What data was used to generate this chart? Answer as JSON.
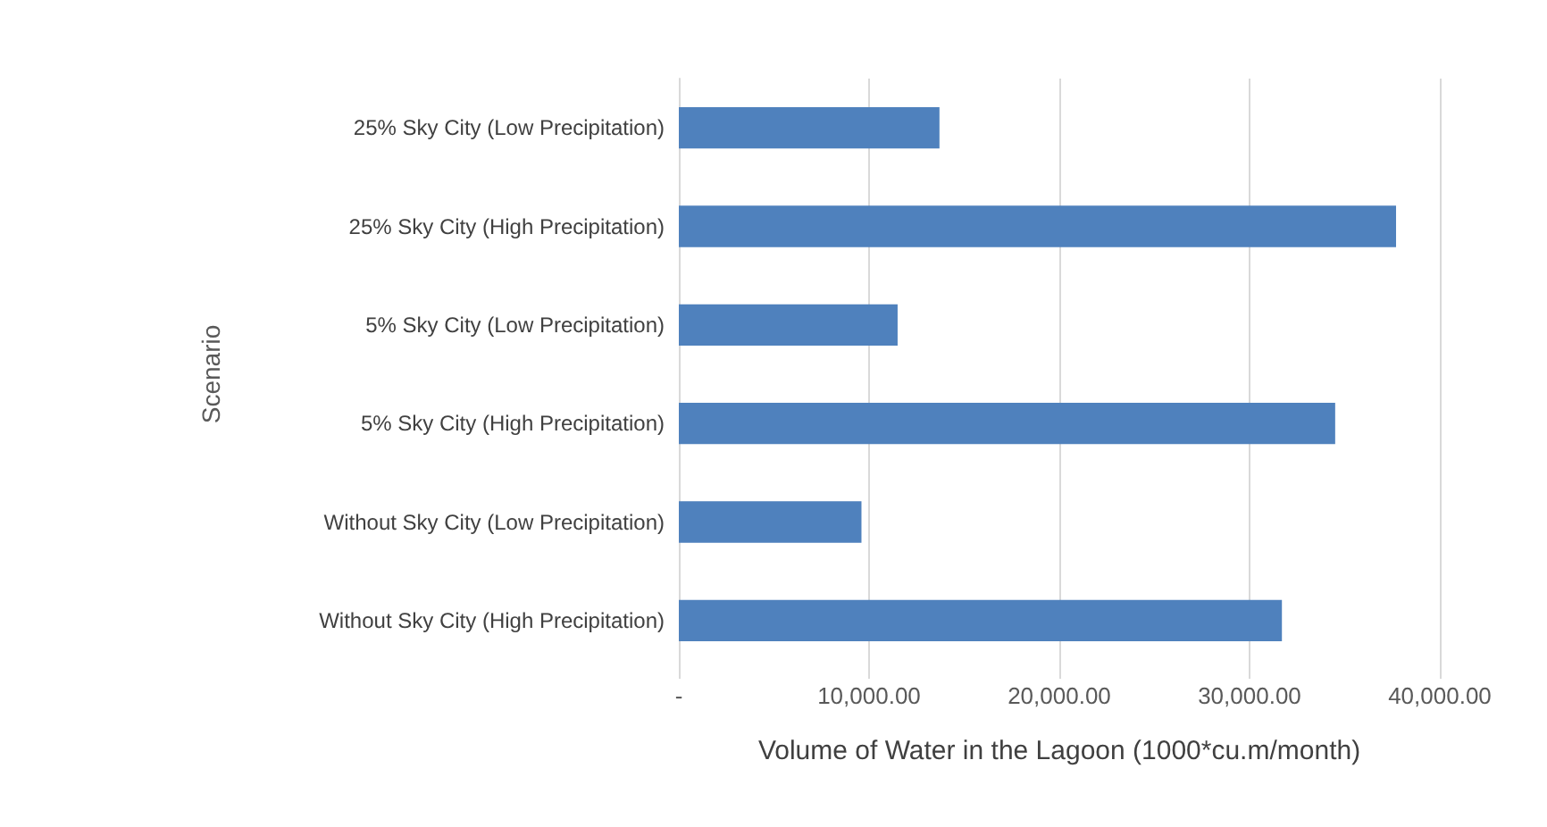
{
  "chart_data": {
    "type": "bar",
    "orientation": "horizontal",
    "categories": [
      "25% Sky City (Low Precipitation)",
      "25% Sky City (High Precipitation)",
      "5% Sky City (Low Precipitation)",
      "5% Sky City (High Precipitation)",
      "Without Sky City (Low Precipitation)",
      "Without Sky City (High Precipitation)"
    ],
    "values": [
      13700,
      37700,
      11500,
      34500,
      9600,
      31700
    ],
    "color": "#4f81bd",
    "xlabel": "Volume of Water in the Lagoon (1000*cu.m/month)",
    "ylabel": "Scenario",
    "xlim": [
      0,
      40000
    ],
    "xticks": [
      {
        "value": 0,
        "label": "-"
      },
      {
        "value": 10000,
        "label": "10,000.00"
      },
      {
        "value": 20000,
        "label": "20,000.00"
      },
      {
        "value": 30000,
        "label": "30,000.00"
      },
      {
        "value": 40000,
        "label": "40,000.00"
      }
    ],
    "grid": "x"
  }
}
